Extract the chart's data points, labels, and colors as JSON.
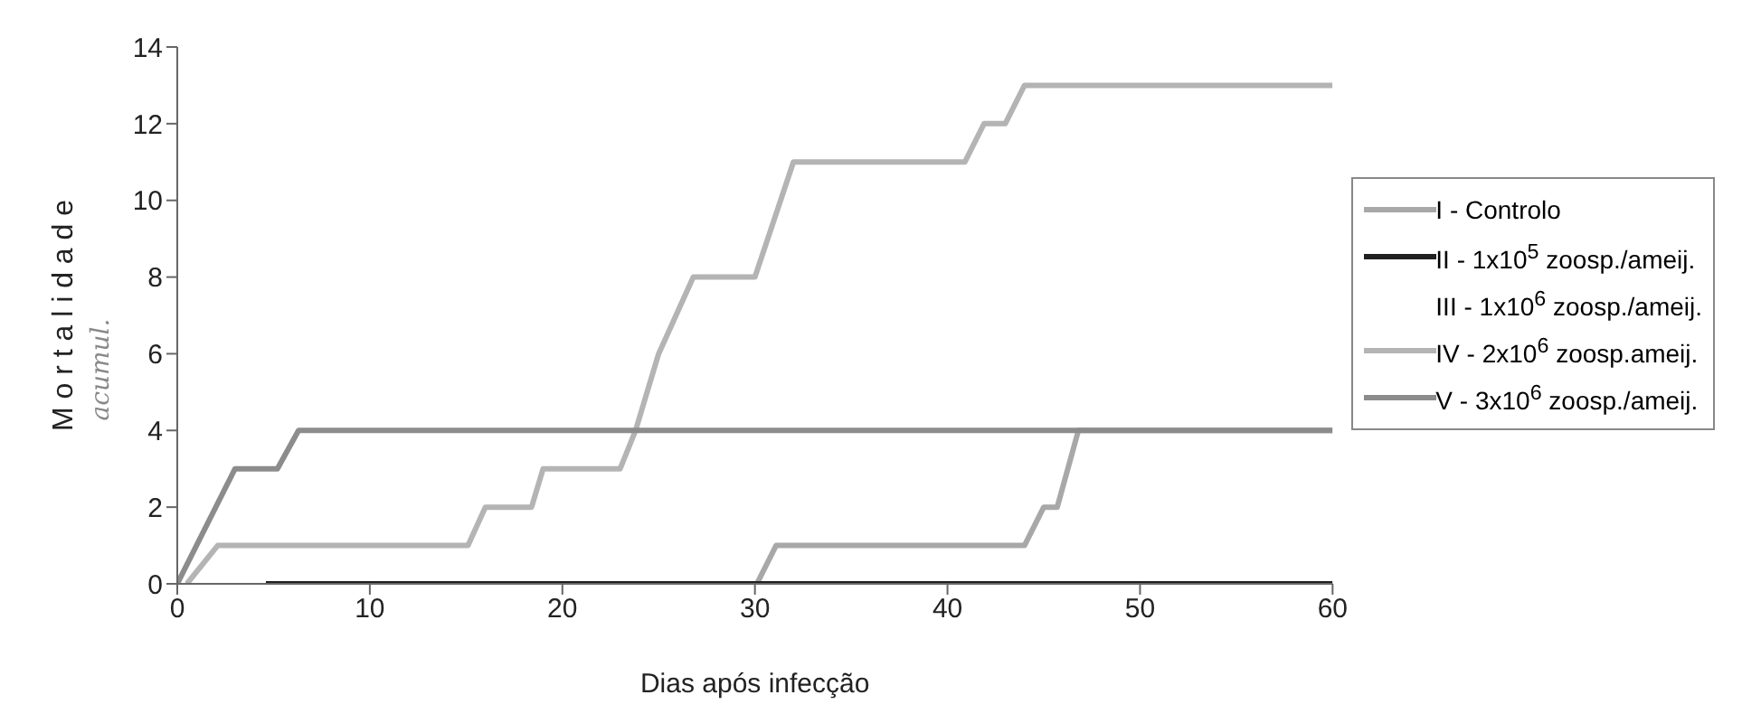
{
  "chart_data": {
    "type": "line",
    "xlabel": "Dias após infecção",
    "ylabel": "M o r t a l i d a d e",
    "annotations": [
      "acumul."
    ],
    "xlim": [
      0,
      60
    ],
    "xticks": [
      0,
      10,
      20,
      30,
      40,
      50,
      60
    ],
    "ylim": [
      0,
      14
    ],
    "yticks": [
      0,
      2,
      4,
      6,
      8,
      10,
      12,
      14
    ],
    "grid": false,
    "legend": "right",
    "marker": "none",
    "line_style": "solid",
    "series": [
      {
        "name": "I - Controlo",
        "color": "#a8a8a8",
        "x": [
          30.1,
          31.1,
          44,
          45,
          45.7,
          46.8,
          60
        ],
        "values": [
          0,
          1,
          1,
          2,
          2,
          4,
          4
        ]
      },
      {
        "name": "II - 1x10$^{5}$ zoosp./ameij.",
        "color": "#202020",
        "x": [
          4.6,
          60
        ],
        "values": [
          0,
          0
        ]
      },
      {
        "name": "III - 1x10$^{6}$ zoosp./ameij."
      },
      {
        "name": "IV - 2x10$^{6}$ zoosp.ameij.",
        "color": "#b4b4b4",
        "x": [
          0.5,
          2.1,
          15.1,
          16,
          18.4,
          19,
          23,
          23.8,
          25,
          26.8,
          30,
          32,
          40.9,
          41.9,
          43,
          44,
          60
        ],
        "values": [
          0,
          1,
          1,
          2,
          2,
          3,
          3,
          4,
          6,
          8,
          8,
          11,
          11,
          12,
          12,
          13,
          13
        ]
      },
      {
        "name": "V - 3x10$^{6}$ zoosp./ameij.",
        "color": "#8c8c8c",
        "x": [
          0,
          3,
          5.2,
          6.3,
          60
        ],
        "values": [
          0,
          3,
          3,
          4,
          4
        ]
      }
    ]
  }
}
